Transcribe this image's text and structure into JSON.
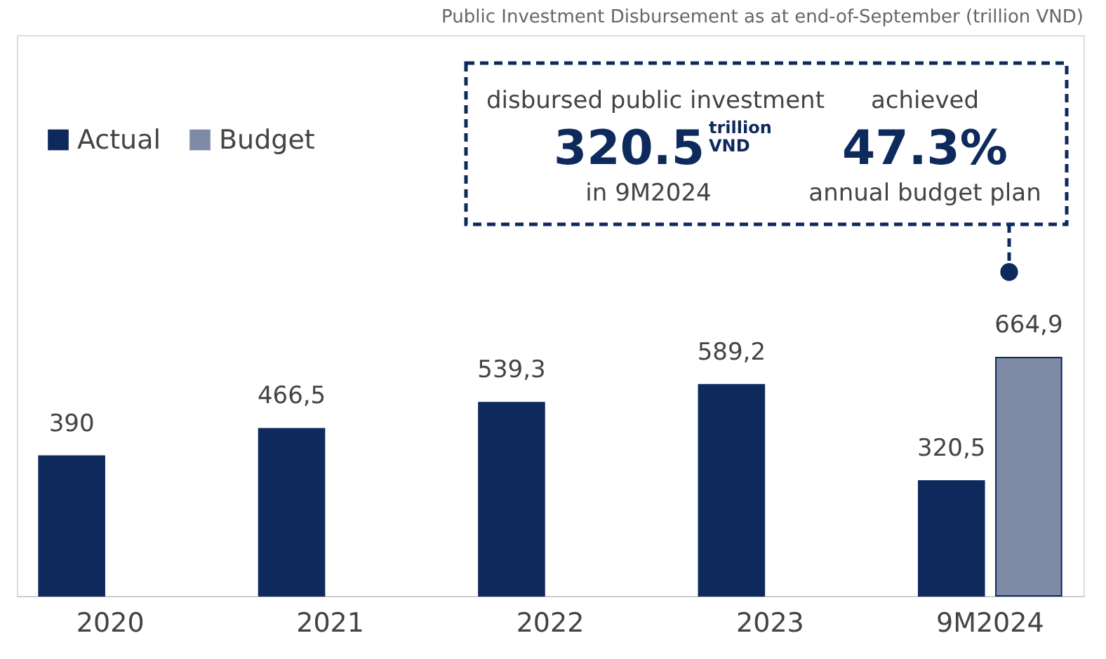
{
  "chart_data": {
    "type": "bar",
    "title": "Public Investment Disbursement as at end-of-September (trillion VND)",
    "categories": [
      "2020",
      "2021",
      "2022",
      "2023",
      "9M2024"
    ],
    "series": [
      {
        "name": "Actual",
        "color": "#0e2a5c",
        "values": [
          390,
          466.5,
          539.3,
          589.2,
          320.5
        ],
        "value_labels": [
          "390",
          "466,5",
          "539,3",
          "589,2",
          "320,5"
        ]
      },
      {
        "name": "Budget",
        "color": "#7f8ba6",
        "values": [
          null,
          null,
          null,
          null,
          664.9
        ],
        "value_labels": [
          null,
          null,
          null,
          null,
          "664,9"
        ]
      }
    ],
    "annotations": [
      "disbursed public investment",
      "320.5",
      "trillion VND",
      "in 9M2024",
      "achieved",
      "47.3%",
      "annual budget plan"
    ],
    "legend": "top left",
    "grid": false
  }
}
